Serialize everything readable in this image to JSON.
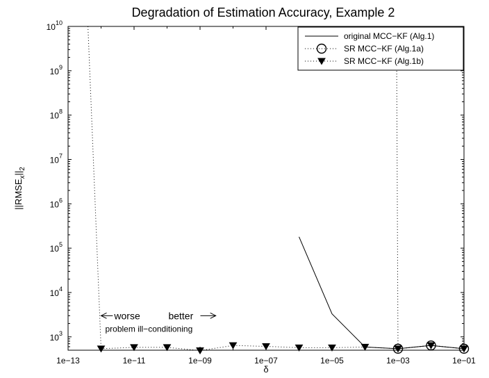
{
  "chart_data": {
    "type": "line",
    "title": "Degradation of Estimation Accuracy, Example 2",
    "xlabel": "δ",
    "ylabel": "||RMSE_x||_2",
    "x_scale": "log",
    "y_scale": "log",
    "xlim": [
      1e-13,
      0.1
    ],
    "ylim": [
      500,
      10000000000.0
    ],
    "x_ticks": [
      1e-13,
      1e-11,
      1e-09,
      1e-07,
      1e-05,
      0.001,
      0.1
    ],
    "x_tick_labels": [
      "1e−13",
      "1e−11",
      "1e−09",
      "1e−07",
      "1e−05",
      "1e−03",
      "1e−01"
    ],
    "y_ticks": [
      {
        "value": 1000,
        "base": "10",
        "exp": "3"
      },
      {
        "value": 10000,
        "base": "10",
        "exp": "4"
      },
      {
        "value": 100000,
        "base": "10",
        "exp": "5"
      },
      {
        "value": 1000000,
        "base": "10",
        "exp": "6"
      },
      {
        "value": 10000000,
        "base": "10",
        "exp": "7"
      },
      {
        "value": 100000000,
        "base": "10",
        "exp": "8"
      },
      {
        "value": 1000000000,
        "base": "10",
        "exp": "9"
      },
      {
        "value": 10000000000,
        "base": "10",
        "exp": "10"
      }
    ],
    "grid": false,
    "legend_position": "top-right",
    "series": [
      {
        "name": "original MCC−KF (Alg.1)",
        "line_style": "solid",
        "marker": "none",
        "x": [
          1e-06,
          1e-05,
          0.0001,
          0.001,
          0.01,
          0.1
        ],
        "y": [
          180000,
          3300,
          590,
          540,
          640,
          540
        ]
      },
      {
        "name": "SR MCC−KF (Alg.1a)",
        "line_style": "dotted",
        "marker": "circle-open",
        "x": [
          0.0009,
          0.001,
          0.01,
          0.1
        ],
        "y": [
          10000000000.0,
          540,
          640,
          540
        ]
      },
      {
        "name": "SR MCC−KF (Alg.1b)",
        "line_style": "dotted",
        "marker": "triangle-down-filled",
        "x": [
          4e-13,
          1e-12,
          1e-11,
          1e-10,
          1e-09,
          1e-08,
          1e-07,
          1e-06,
          1e-05,
          0.0001,
          0.001,
          0.01,
          0.1
        ],
        "y": [
          10000000000.0,
          540,
          580,
          580,
          490,
          640,
          610,
          570,
          570,
          590,
          540,
          640,
          540
        ]
      }
    ],
    "annotations": {
      "worse": "worse",
      "better": "better",
      "note": "problem ill−conditioning",
      "arrow_x_range": [
        1e-12,
        3e-09
      ],
      "arrow_y": 3000,
      "worse_x": 2.5e-12,
      "better_x": 1.1e-10,
      "note_y": 1500
    }
  }
}
